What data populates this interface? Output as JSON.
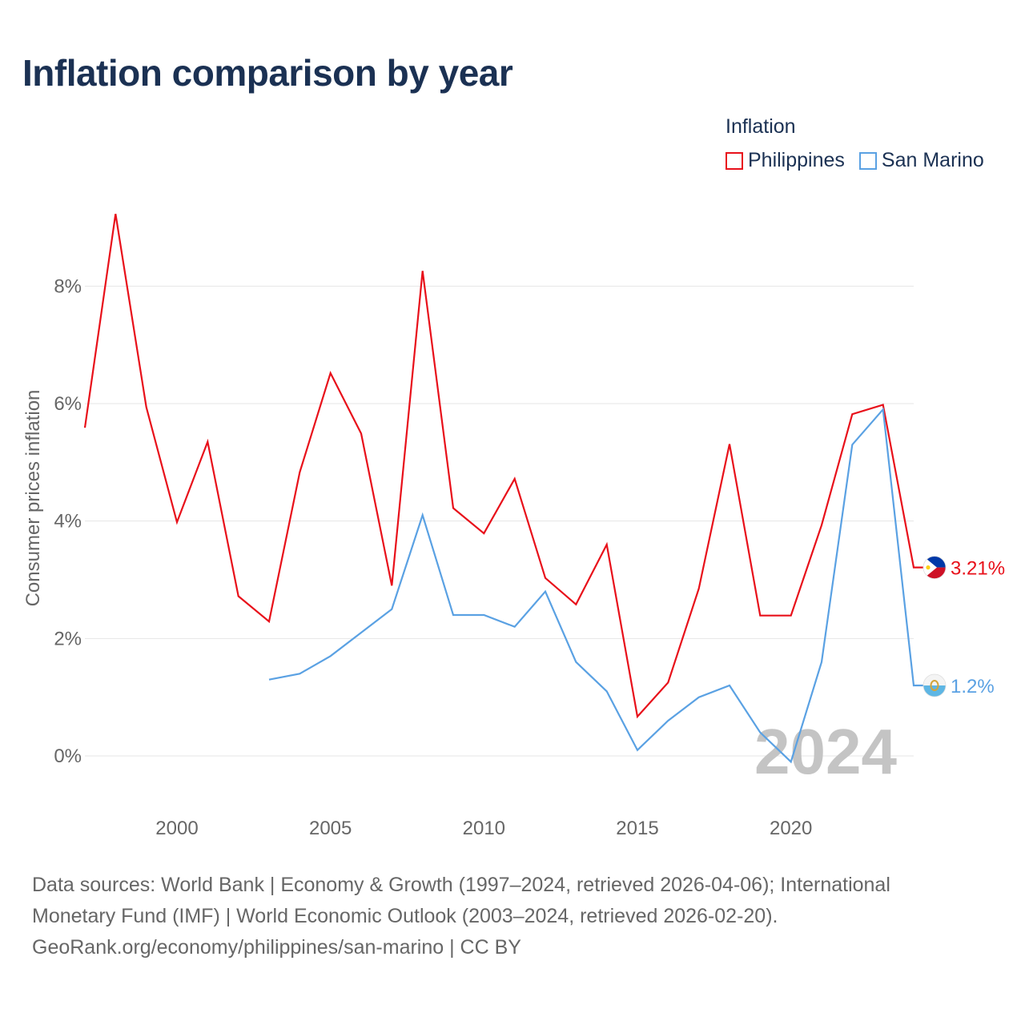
{
  "chart_data": {
    "type": "line",
    "title": "Inflation comparison by year",
    "legend_title": "Inflation",
    "ylabel": "Consumer prices inflation",
    "xlabel": "",
    "xlim": [
      1997,
      2024
    ],
    "ylim": [
      -0.9,
      9.6
    ],
    "x_ticks": [
      2000,
      2005,
      2010,
      2015,
      2020
    ],
    "y_ticks": [
      0,
      2,
      4,
      6,
      8
    ],
    "y_tick_labels": [
      "0%",
      "2%",
      "4%",
      "6%",
      "8%"
    ],
    "year_watermark": "2024",
    "series": [
      {
        "name": "Philippines",
        "color": "#e8101a",
        "end_label": "3.21%",
        "flag": "philippines-flag",
        "x": [
          1997,
          1998,
          1999,
          2000,
          2001,
          2002,
          2003,
          2004,
          2005,
          2006,
          2007,
          2008,
          2009,
          2010,
          2011,
          2012,
          2013,
          2014,
          2015,
          2016,
          2017,
          2018,
          2019,
          2020,
          2021,
          2022,
          2023,
          2024
        ],
        "values": [
          5.59,
          9.23,
          5.94,
          3.98,
          5.35,
          2.72,
          2.29,
          4.83,
          6.52,
          5.49,
          2.9,
          8.26,
          4.22,
          3.79,
          4.72,
          3.03,
          2.58,
          3.6,
          0.67,
          1.25,
          2.85,
          5.31,
          2.39,
          2.39,
          3.93,
          5.82,
          5.98,
          3.21
        ]
      },
      {
        "name": "San Marino",
        "color": "#5aa1e3",
        "end_label": "1.2%",
        "flag": "san-marino-flag",
        "x": [
          2003,
          2004,
          2005,
          2006,
          2007,
          2008,
          2009,
          2010,
          2011,
          2012,
          2013,
          2014,
          2015,
          2016,
          2017,
          2018,
          2019,
          2020,
          2021,
          2022,
          2023,
          2024
        ],
        "values": [
          1.3,
          1.4,
          1.7,
          2.1,
          2.5,
          4.1,
          2.4,
          2.4,
          2.2,
          2.8,
          1.6,
          1.1,
          0.1,
          0.6,
          1.0,
          1.2,
          0.4,
          -0.1,
          1.6,
          5.3,
          5.9,
          1.2
        ]
      }
    ]
  },
  "footer": {
    "line1": "Data sources: World Bank | Economy & Growth (1997–2024, retrieved 2026-04-06); International",
    "line2": "Monetary Fund (IMF) | World Economic Outlook (2003–2024, retrieved 2026-02-20).",
    "line3": "GeoRank.org/economy/philippines/san-marino | CC BY"
  }
}
